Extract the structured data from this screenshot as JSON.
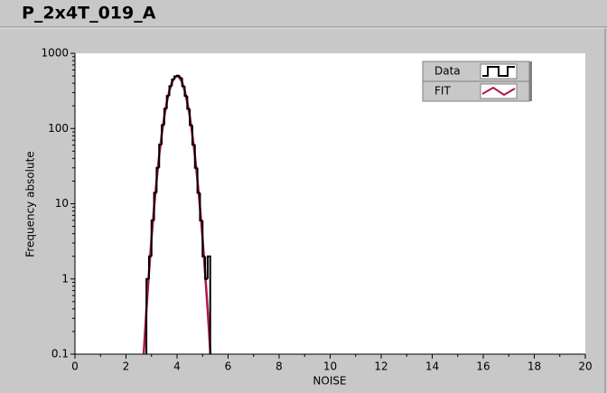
{
  "chart_data": {
    "type": "line",
    "title": "P_2x4T_019_A",
    "x_label": "NOISE",
    "y_label": "Frequency absolute",
    "xlim": [
      0,
      20
    ],
    "xticks": [
      0,
      2,
      4,
      6,
      8,
      10,
      12,
      14,
      16,
      18,
      20
    ],
    "ylim": [
      0.1,
      1000
    ],
    "yticks": [
      0.1,
      1,
      10,
      100,
      1000
    ],
    "y_scale": "log",
    "legend_position": "upper right",
    "series": [
      {
        "name": "Data",
        "color": "#000000",
        "style": "step",
        "bins": [
          2.8,
          2.9,
          3.0,
          3.1,
          3.2,
          3.3,
          3.4,
          3.5,
          3.6,
          3.7,
          3.8,
          3.9,
          4.0,
          4.1,
          4.2,
          4.3,
          4.4,
          4.5,
          4.6,
          4.7,
          4.8,
          4.9,
          5.0,
          5.1,
          5.2,
          5.3
        ],
        "values": [
          1,
          2,
          6,
          14,
          30,
          61,
          111,
          183,
          272,
          366,
          447,
          494,
          505,
          470,
          366,
          272,
          183,
          111,
          61,
          30,
          14,
          6,
          2,
          1,
          2
        ]
      },
      {
        "name": "FIT",
        "color": "#b0144a",
        "style": "line",
        "x": [
          2.6,
          2.7,
          2.8,
          2.9,
          3.0,
          3.1,
          3.2,
          3.3,
          3.4,
          3.5,
          3.6,
          3.7,
          3.8,
          3.9,
          4.0,
          4.1,
          4.2,
          4.3,
          4.4,
          4.5,
          4.6,
          4.7,
          4.8,
          4.9,
          5.0,
          5.1,
          5.2,
          5.3,
          5.4
        ],
        "values": [
          0.029,
          0.11,
          0.39,
          1.2,
          3.5,
          8.9,
          20.7,
          43.7,
          83.4,
          144,
          225,
          319,
          410,
          476,
          500,
          476,
          410,
          319,
          225,
          144,
          83.4,
          43.7,
          20.7,
          8.9,
          3.5,
          1.2,
          0.39,
          0.11,
          0.029
        ]
      }
    ]
  }
}
